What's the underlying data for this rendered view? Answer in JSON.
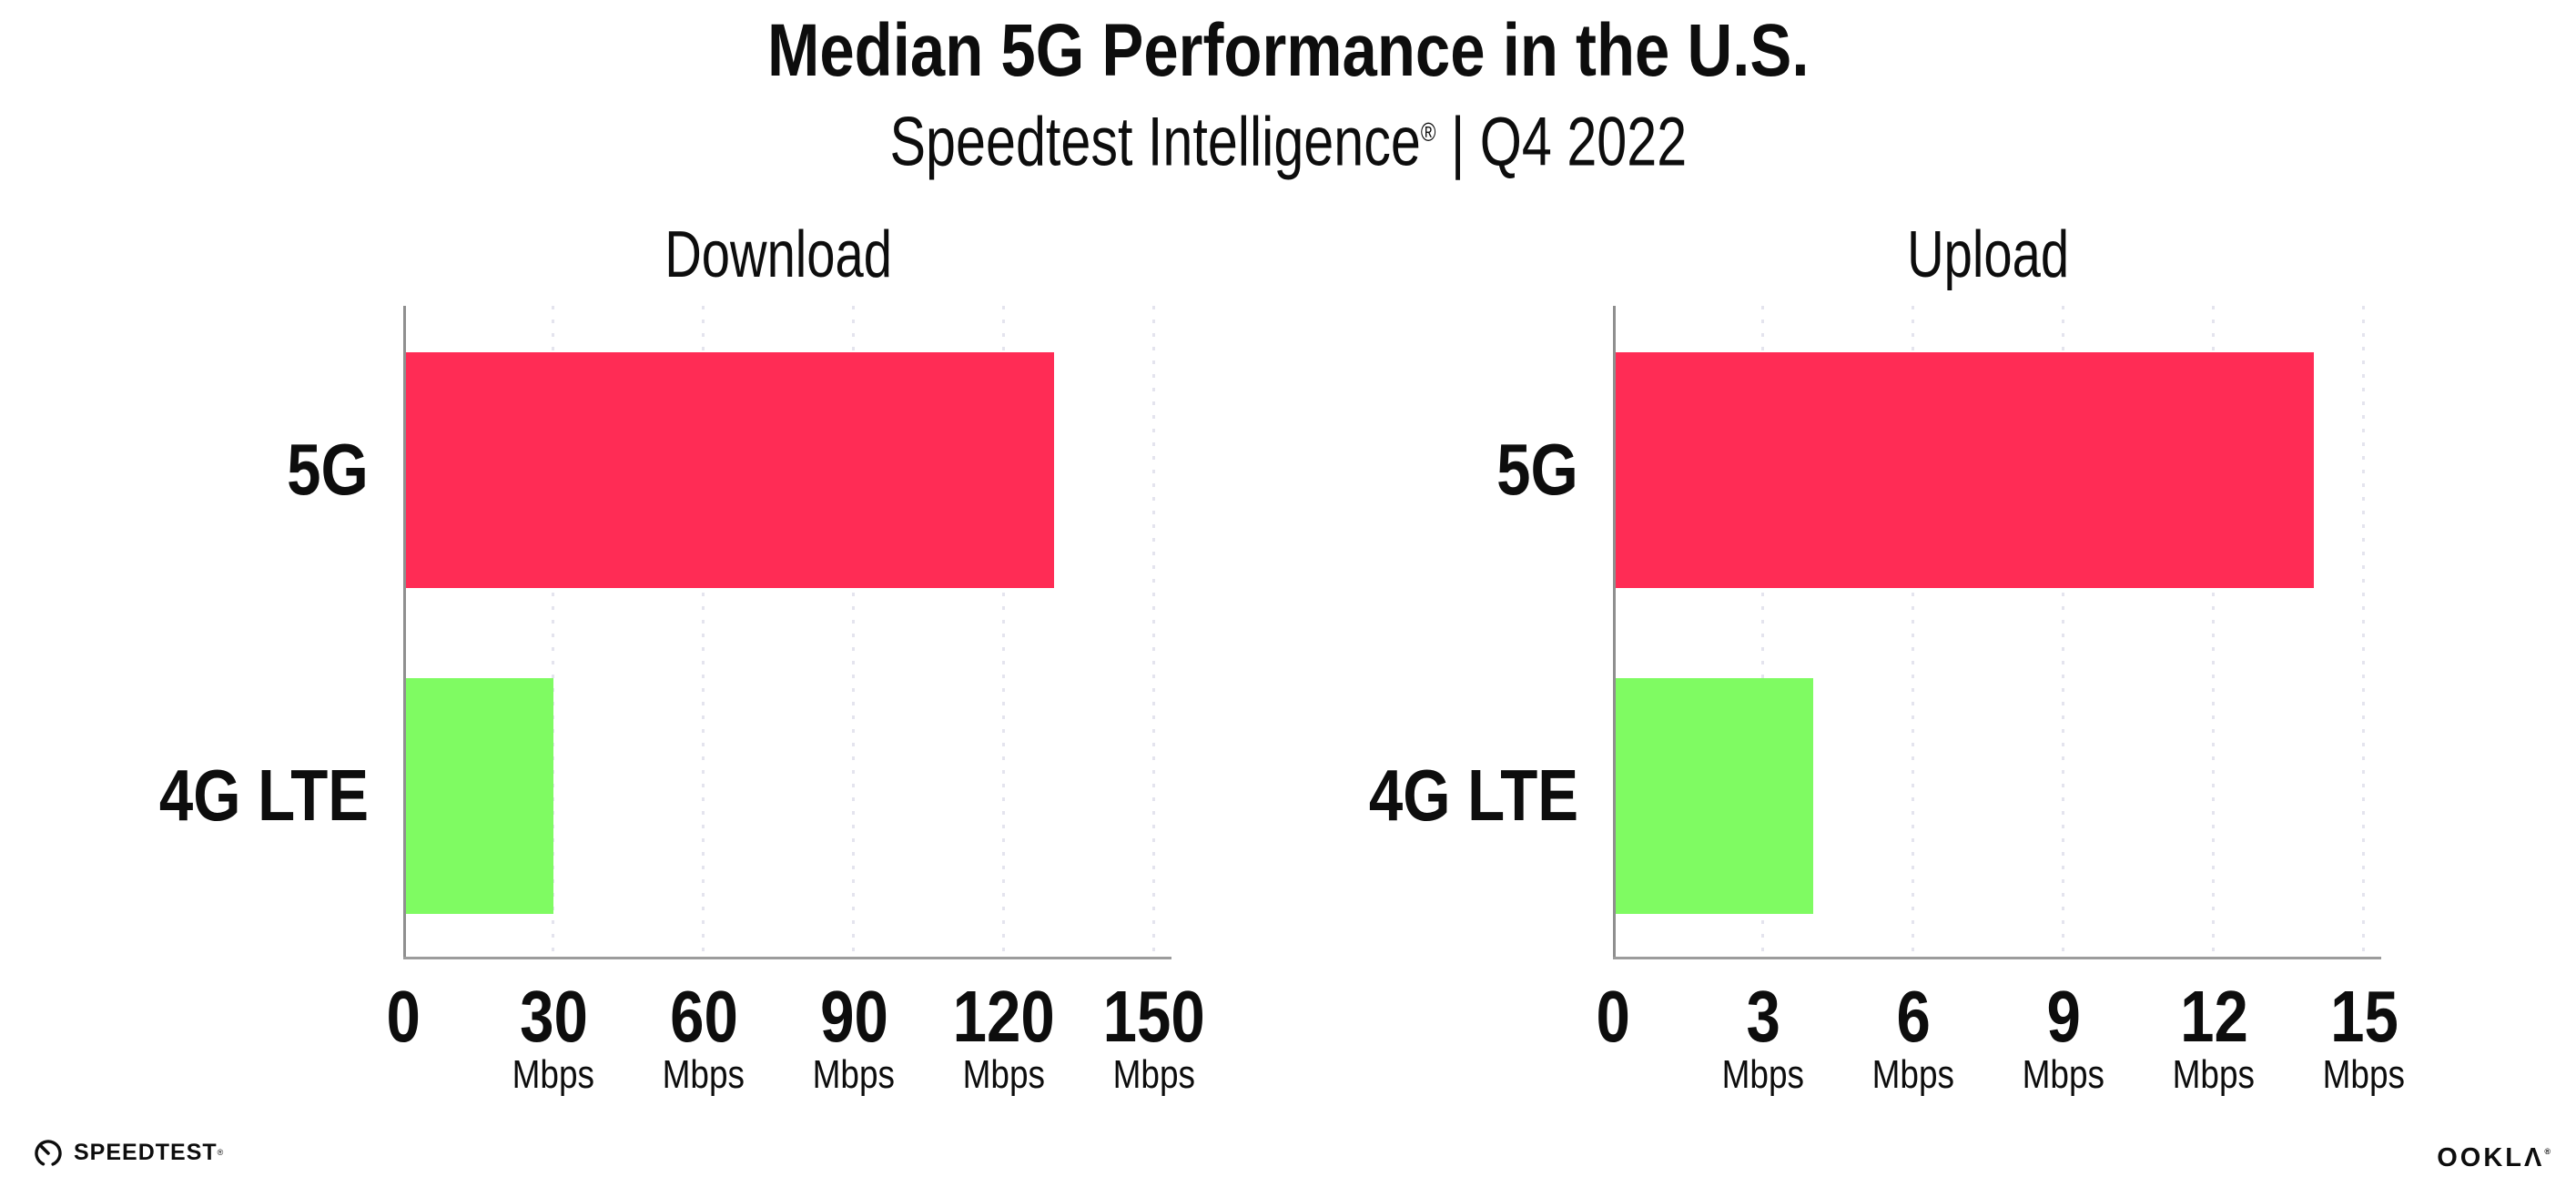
{
  "header": {
    "title": "Median 5G Performance in the U.S.",
    "subtitle_brand": "Speedtest Intelligence",
    "subtitle_reg": "®",
    "subtitle_rest": " | Q4 2022"
  },
  "chart_data": [
    {
      "type": "bar",
      "orientation": "horizontal",
      "title": "Download",
      "categories": [
        "5G",
        "4G LTE"
      ],
      "values": [
        130,
        30
      ],
      "unit": "Mbps",
      "xlim": [
        0,
        150
      ],
      "xticks": [
        0,
        30,
        60,
        90,
        120,
        150
      ],
      "bar_colors": [
        "#ff2c55",
        "#7ffb62"
      ],
      "grid": "vertical-dotted",
      "legend": "none"
    },
    {
      "type": "bar",
      "orientation": "horizontal",
      "title": "Upload",
      "categories": [
        "5G",
        "4G LTE"
      ],
      "values": [
        14,
        4
      ],
      "unit": "Mbps",
      "xlim": [
        0,
        15
      ],
      "xticks": [
        0,
        3,
        6,
        9,
        12,
        15
      ],
      "bar_colors": [
        "#ff2c55",
        "#7ffb62"
      ],
      "grid": "vertical-dotted",
      "legend": "none"
    }
  ],
  "colors": {
    "bar_5g": "#ff2c55",
    "bar_4g_lte": "#7ffb62",
    "axis": "#8f8f8f",
    "gridline": "#e4e4ee",
    "text": "#0d0d0d"
  },
  "footer": {
    "speedtest_label": "SPEEDTEST",
    "speedtest_reg": "®",
    "ookla_label": "OOKLΛ",
    "ookla_reg": "®"
  }
}
